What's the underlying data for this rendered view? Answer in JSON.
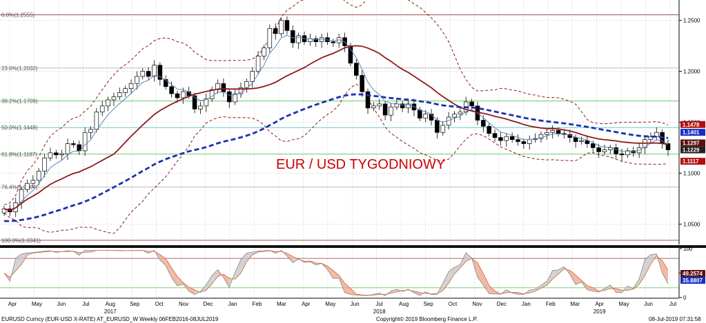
{
  "title": "EUR / USD TYGODNIOWY",
  "footer": {
    "left": "EURUSD Curncy (EUR-USD X-RATE) AT_EURUSD_W  Weekly 06FEB2016-08JUL2019",
    "center": "Copyright© 2019 Bloomberg Finance L.P.",
    "right": "08-Jul-2019 07:31:58"
  },
  "colors": {
    "candle_up": "#ffffff",
    "candle_down": "#000000",
    "ma_fast": "#5b86b8",
    "ma_mid": "#8b1a1a",
    "ma_slow": "#1a2fb0",
    "bollinger": "#8b1a1a",
    "fib_red": "#a05050",
    "fib_green": "#66cc66",
    "fib_cyan": "#66cccc",
    "fib_gray": "#bbbbbb",
    "tag_dark": "#222222",
    "tag_red": "#b01010",
    "tag_blue": "#1530c0",
    "tag_maroon": "#5a1010",
    "headline": "#cc0000"
  },
  "chart_data": [
    {
      "type": "candlestick",
      "title": "EUR / USD TYGODNIOWY",
      "ylim": [
        1.03,
        1.27
      ],
      "y_ticks": [
        "1.2500",
        "1.2000",
        "1.1500",
        "1.1000",
        "1.0500"
      ],
      "y_tick_values": [
        1.25,
        1.2,
        1.15,
        1.1,
        1.05
      ],
      "months": [
        {
          "label": "Apr",
          "year": ""
        },
        {
          "label": "May",
          "year": ""
        },
        {
          "label": "Jun",
          "year": ""
        },
        {
          "label": "Jul",
          "year": ""
        },
        {
          "label": "Aug",
          "year": "2017"
        },
        {
          "label": "Sep",
          "year": ""
        },
        {
          "label": "Oct",
          "year": ""
        },
        {
          "label": "Nov",
          "year": ""
        },
        {
          "label": "Dec",
          "year": ""
        },
        {
          "label": "Jan",
          "year": ""
        },
        {
          "label": "Feb",
          "year": ""
        },
        {
          "label": "Mar",
          "year": ""
        },
        {
          "label": "Apr",
          "year": ""
        },
        {
          "label": "May",
          "year": ""
        },
        {
          "label": "Jun",
          "year": ""
        },
        {
          "label": "Jul",
          "year": "2018"
        },
        {
          "label": "Aug",
          "year": ""
        },
        {
          "label": "Sep",
          "year": ""
        },
        {
          "label": "Oct",
          "year": ""
        },
        {
          "label": "Nov",
          "year": ""
        },
        {
          "label": "Dec",
          "year": ""
        },
        {
          "label": "Jan",
          "year": ""
        },
        {
          "label": "Feb",
          "year": ""
        },
        {
          "label": "Mar",
          "year": ""
        },
        {
          "label": "Apr",
          "year": "2019"
        },
        {
          "label": "May",
          "year": ""
        },
        {
          "label": "Jun",
          "year": ""
        },
        {
          "label": "Jul",
          "year": ""
        }
      ],
      "fib_levels": [
        {
          "label": "0.0%(1.2555)",
          "value": 1.2555,
          "color": "fib_red"
        },
        {
          "label": "23.6%(1.2032)",
          "value": 1.2032,
          "color": "fib_gray"
        },
        {
          "label": "38.2%(1.1709)",
          "value": 1.1709,
          "color": "fib_green"
        },
        {
          "label": "50.0%(1.1448)",
          "value": 1.1448,
          "color": "fib_cyan"
        },
        {
          "label": "61.8%(1.1187)",
          "value": 1.1187,
          "color": "fib_green"
        },
        {
          "label": "76.4%(1.0864)",
          "value": 1.0864,
          "color": "fib_gray"
        },
        {
          "label": "100.0%(1.0341)",
          "value": 1.0341,
          "color": "fib_red"
        }
      ],
      "price_tags": [
        {
          "label": "1.1478",
          "value": 1.1478,
          "color": "tag_red"
        },
        {
          "label": "1.1401",
          "value": 1.1401,
          "color": "tag_blue"
        },
        {
          "label": "1.1297",
          "value": 1.1297,
          "color": "tag_maroon"
        },
        {
          "label": "1.1229",
          "value": 1.1229,
          "color": "tag_dark"
        },
        {
          "label": "1.1117",
          "value": 1.1117,
          "color": "tag_red"
        }
      ],
      "closes": [
        1.065,
        1.062,
        1.071,
        1.084,
        1.09,
        1.093,
        1.102,
        1.115,
        1.12,
        1.118,
        1.119,
        1.129,
        1.128,
        1.122,
        1.14,
        1.143,
        1.16,
        1.166,
        1.172,
        1.175,
        1.179,
        1.183,
        1.188,
        1.195,
        1.2,
        1.195,
        1.206,
        1.192,
        1.185,
        1.178,
        1.174,
        1.18,
        1.176,
        1.163,
        1.166,
        1.173,
        1.182,
        1.188,
        1.18,
        1.17,
        1.178,
        1.184,
        1.19,
        1.2,
        1.215,
        1.223,
        1.242,
        1.237,
        1.25,
        1.24,
        1.228,
        1.235,
        1.229,
        1.232,
        1.229,
        1.233,
        1.229,
        1.228,
        1.233,
        1.225,
        1.208,
        1.196,
        1.18,
        1.164,
        1.166,
        1.168,
        1.157,
        1.165,
        1.168,
        1.164,
        1.168,
        1.162,
        1.154,
        1.158,
        1.152,
        1.14,
        1.147,
        1.155,
        1.158,
        1.16,
        1.17,
        1.166,
        1.152,
        1.146,
        1.139,
        1.135,
        1.132,
        1.136,
        1.133,
        1.131,
        1.129,
        1.133,
        1.134,
        1.138,
        1.14,
        1.142,
        1.139,
        1.138,
        1.135,
        1.131,
        1.132,
        1.129,
        1.125,
        1.121,
        1.123,
        1.125,
        1.119,
        1.118,
        1.122,
        1.12,
        1.125,
        1.133,
        1.136,
        1.14,
        1.129,
        1.1229
      ]
    },
    {
      "type": "line",
      "title": "",
      "ylim": [
        0,
        100
      ],
      "y_ticks": [
        "100",
        "50",
        "0"
      ],
      "y_tick_values": [
        100,
        50,
        0
      ],
      "overbought": 80,
      "oversold": 20,
      "value_tags": [
        {
          "label": "49.2574",
          "value": 49.2574,
          "color": "tag_maroon"
        },
        {
          "label": "35.8807",
          "value": 35.8807,
          "color": "tag_blue"
        }
      ]
    }
  ]
}
